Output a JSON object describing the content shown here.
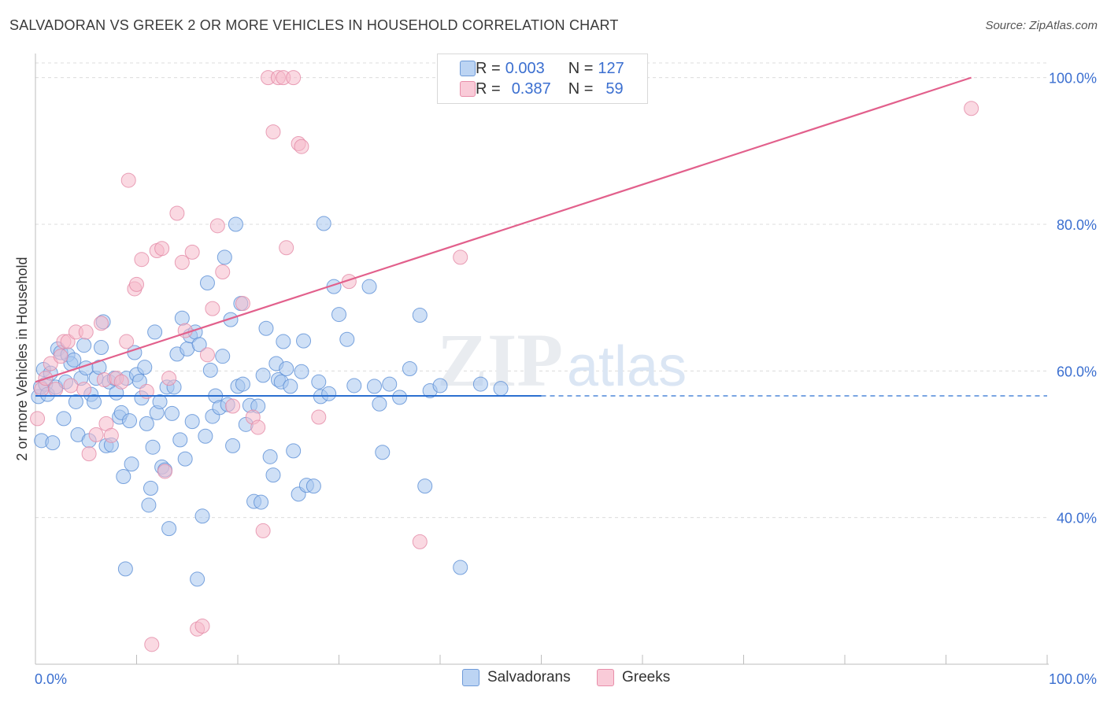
{
  "title": "SALVADORAN VS GREEK 2 OR MORE VEHICLES IN HOUSEHOLD CORRELATION CHART",
  "source": "Source: ZipAtlas.com",
  "watermark": {
    "zip": "ZIP",
    "atlas": "atlas"
  },
  "legend": {
    "rows": [
      {
        "r_label": "R = ",
        "r_value": "0.003",
        "n_label": "N = ",
        "n_value": "127"
      },
      {
        "r_label": "R = ",
        "r_value": "0.387",
        "n_label": "N = ",
        "n_value": "59"
      }
    ]
  },
  "bottom_legend": {
    "series1": "Salvadorans",
    "series2": "Greeks"
  },
  "colors": {
    "blue_fill": "#a8c6ee",
    "blue_stroke": "#5b8fd6",
    "blue_line": "#2b6fd0",
    "pink_fill": "#f6b9cb",
    "pink_stroke": "#e48aa6",
    "pink_line": "#e2608c",
    "axis_label": "#3b6fd0",
    "grid": "#dcdcdc"
  },
  "chart_data": {
    "type": "scatter",
    "ylabel": "2 or more Vehicles in Household",
    "xlabel": "",
    "x_tick_labels": [
      "0.0%",
      "100.0%"
    ],
    "y_tick_labels": [
      "40.0%",
      "60.0%",
      "80.0%",
      "100.0%"
    ],
    "xlim": [
      0,
      100
    ],
    "ylim": [
      20,
      102
    ],
    "grid": true,
    "series": [
      {
        "name": "Salvadorans",
        "trend": {
          "x0": 0,
          "y0": 56.6,
          "x1": 50,
          "y1": 56.6,
          "dashed_to": 100
        },
        "points": [
          [
            0.3,
            56.5
          ],
          [
            0.5,
            57.8
          ],
          [
            0.6,
            50.5
          ],
          [
            0.8,
            60.2
          ],
          [
            1.0,
            58.2
          ],
          [
            1.2,
            56.8
          ],
          [
            1.5,
            59.7
          ],
          [
            1.7,
            50.2
          ],
          [
            2.0,
            57.8
          ],
          [
            2.2,
            63.0
          ],
          [
            2.5,
            62.5
          ],
          [
            2.8,
            53.5
          ],
          [
            3.0,
            58.5
          ],
          [
            3.2,
            62.2
          ],
          [
            3.5,
            61.0
          ],
          [
            3.8,
            61.5
          ],
          [
            4.0,
            55.8
          ],
          [
            4.2,
            51.3
          ],
          [
            4.5,
            59.0
          ],
          [
            4.8,
            63.5
          ],
          [
            5.0,
            60.4
          ],
          [
            5.3,
            50.5
          ],
          [
            5.5,
            56.8
          ],
          [
            5.8,
            55.8
          ],
          [
            6.0,
            59.0
          ],
          [
            6.3,
            60.5
          ],
          [
            6.5,
            63.2
          ],
          [
            6.7,
            66.7
          ],
          [
            7.0,
            49.8
          ],
          [
            7.3,
            58.5
          ],
          [
            7.5,
            49.9
          ],
          [
            7.8,
            59.0
          ],
          [
            8.0,
            57.0
          ],
          [
            8.3,
            53.7
          ],
          [
            8.5,
            54.3
          ],
          [
            8.7,
            45.6
          ],
          [
            8.9,
            33.0
          ],
          [
            9.0,
            59.0
          ],
          [
            9.3,
            53.2
          ],
          [
            9.5,
            47.3
          ],
          [
            9.8,
            62.5
          ],
          [
            10.0,
            59.5
          ],
          [
            10.3,
            58.6
          ],
          [
            10.5,
            56.3
          ],
          [
            10.8,
            60.5
          ],
          [
            11.0,
            52.8
          ],
          [
            11.2,
            41.7
          ],
          [
            11.4,
            44.0
          ],
          [
            11.6,
            49.6
          ],
          [
            11.8,
            65.3
          ],
          [
            12.0,
            54.3
          ],
          [
            12.3,
            55.8
          ],
          [
            12.5,
            46.9
          ],
          [
            12.8,
            46.5
          ],
          [
            13.0,
            57.8
          ],
          [
            13.2,
            38.5
          ],
          [
            13.5,
            54.2
          ],
          [
            13.7,
            57.8
          ],
          [
            14.0,
            62.3
          ],
          [
            14.3,
            50.6
          ],
          [
            14.5,
            67.2
          ],
          [
            14.8,
            48.0
          ],
          [
            15.0,
            63.0
          ],
          [
            15.3,
            64.8
          ],
          [
            15.5,
            53.1
          ],
          [
            15.8,
            65.3
          ],
          [
            16.0,
            31.6
          ],
          [
            16.2,
            63.6
          ],
          [
            16.5,
            40.2
          ],
          [
            16.8,
            51.1
          ],
          [
            17.0,
            72.0
          ],
          [
            17.3,
            60.1
          ],
          [
            17.5,
            53.8
          ],
          [
            17.8,
            56.6
          ],
          [
            18.2,
            55.0
          ],
          [
            18.5,
            62.0
          ],
          [
            18.7,
            75.5
          ],
          [
            19.0,
            55.4
          ],
          [
            19.3,
            67.0
          ],
          [
            19.5,
            49.8
          ],
          [
            19.8,
            80.0
          ],
          [
            20.0,
            57.9
          ],
          [
            20.3,
            69.2
          ],
          [
            20.5,
            58.2
          ],
          [
            20.8,
            52.7
          ],
          [
            21.2,
            55.3
          ],
          [
            21.6,
            42.2
          ],
          [
            22.0,
            55.2
          ],
          [
            22.3,
            42.1
          ],
          [
            22.5,
            59.4
          ],
          [
            22.8,
            65.8
          ],
          [
            23.2,
            48.3
          ],
          [
            23.5,
            45.8
          ],
          [
            23.8,
            61.0
          ],
          [
            24.0,
            58.8
          ],
          [
            24.3,
            58.5
          ],
          [
            24.5,
            64.0
          ],
          [
            24.8,
            60.3
          ],
          [
            25.2,
            57.9
          ],
          [
            25.5,
            49.1
          ],
          [
            26.0,
            43.2
          ],
          [
            26.3,
            59.9
          ],
          [
            26.5,
            64.1
          ],
          [
            26.8,
            44.4
          ],
          [
            27.5,
            44.3
          ],
          [
            28.0,
            58.5
          ],
          [
            28.2,
            56.5
          ],
          [
            28.5,
            80.1
          ],
          [
            29.0,
            56.9
          ],
          [
            29.5,
            71.5
          ],
          [
            30.0,
            67.7
          ],
          [
            30.8,
            64.3
          ],
          [
            31.5,
            58.0
          ],
          [
            33.0,
            71.5
          ],
          [
            33.5,
            57.9
          ],
          [
            34.0,
            55.5
          ],
          [
            34.3,
            48.9
          ],
          [
            35.0,
            58.2
          ],
          [
            36.0,
            56.4
          ],
          [
            37.0,
            60.3
          ],
          [
            38.0,
            67.6
          ],
          [
            38.5,
            44.3
          ],
          [
            39.0,
            57.3
          ],
          [
            40.0,
            58.0
          ],
          [
            42.0,
            33.2
          ],
          [
            44.0,
            58.2
          ],
          [
            46.0,
            57.6
          ]
        ]
      },
      {
        "name": "Greeks",
        "trend": {
          "x0": 0,
          "y0": 58.5,
          "x1": 92.5,
          "y1": 100.0
        },
        "points": [
          [
            0.2,
            53.5
          ],
          [
            0.6,
            57.5
          ],
          [
            1.0,
            59.0
          ],
          [
            1.5,
            61.0
          ],
          [
            2.0,
            57.5
          ],
          [
            2.5,
            62.0
          ],
          [
            2.8,
            64.0
          ],
          [
            3.2,
            64.0
          ],
          [
            3.5,
            58.0
          ],
          [
            4.0,
            65.3
          ],
          [
            4.8,
            57.5
          ],
          [
            5.0,
            65.3
          ],
          [
            5.3,
            48.7
          ],
          [
            6.0,
            51.3
          ],
          [
            6.5,
            66.5
          ],
          [
            6.8,
            58.8
          ],
          [
            7.0,
            52.8
          ],
          [
            7.5,
            51.2
          ],
          [
            8.0,
            59.0
          ],
          [
            8.5,
            58.5
          ],
          [
            9.0,
            64.0
          ],
          [
            9.2,
            86.0
          ],
          [
            9.8,
            71.2
          ],
          [
            10.0,
            71.8
          ],
          [
            10.5,
            75.2
          ],
          [
            11.0,
            57.2
          ],
          [
            11.5,
            22.7
          ],
          [
            12.0,
            76.4
          ],
          [
            12.5,
            76.7
          ],
          [
            12.8,
            46.3
          ],
          [
            13.2,
            59.0
          ],
          [
            14.0,
            81.5
          ],
          [
            14.5,
            74.8
          ],
          [
            14.8,
            65.5
          ],
          [
            15.5,
            76.2
          ],
          [
            16.0,
            24.8
          ],
          [
            16.5,
            25.2
          ],
          [
            17.0,
            62.2
          ],
          [
            17.5,
            68.5
          ],
          [
            18.0,
            79.8
          ],
          [
            18.5,
            73.5
          ],
          [
            19.5,
            55.2
          ],
          [
            20.5,
            69.2
          ],
          [
            21.5,
            53.7
          ],
          [
            22.0,
            52.3
          ],
          [
            22.5,
            38.2
          ],
          [
            23.0,
            100.0
          ],
          [
            23.5,
            92.6
          ],
          [
            24.0,
            100.0
          ],
          [
            24.5,
            100.0
          ],
          [
            24.8,
            76.8
          ],
          [
            25.5,
            100.0
          ],
          [
            26.0,
            91.0
          ],
          [
            26.3,
            90.6
          ],
          [
            28.0,
            53.7
          ],
          [
            31.0,
            72.2
          ],
          [
            38.0,
            36.7
          ],
          [
            42.0,
            75.5
          ],
          [
            92.5,
            95.8
          ]
        ]
      }
    ]
  }
}
